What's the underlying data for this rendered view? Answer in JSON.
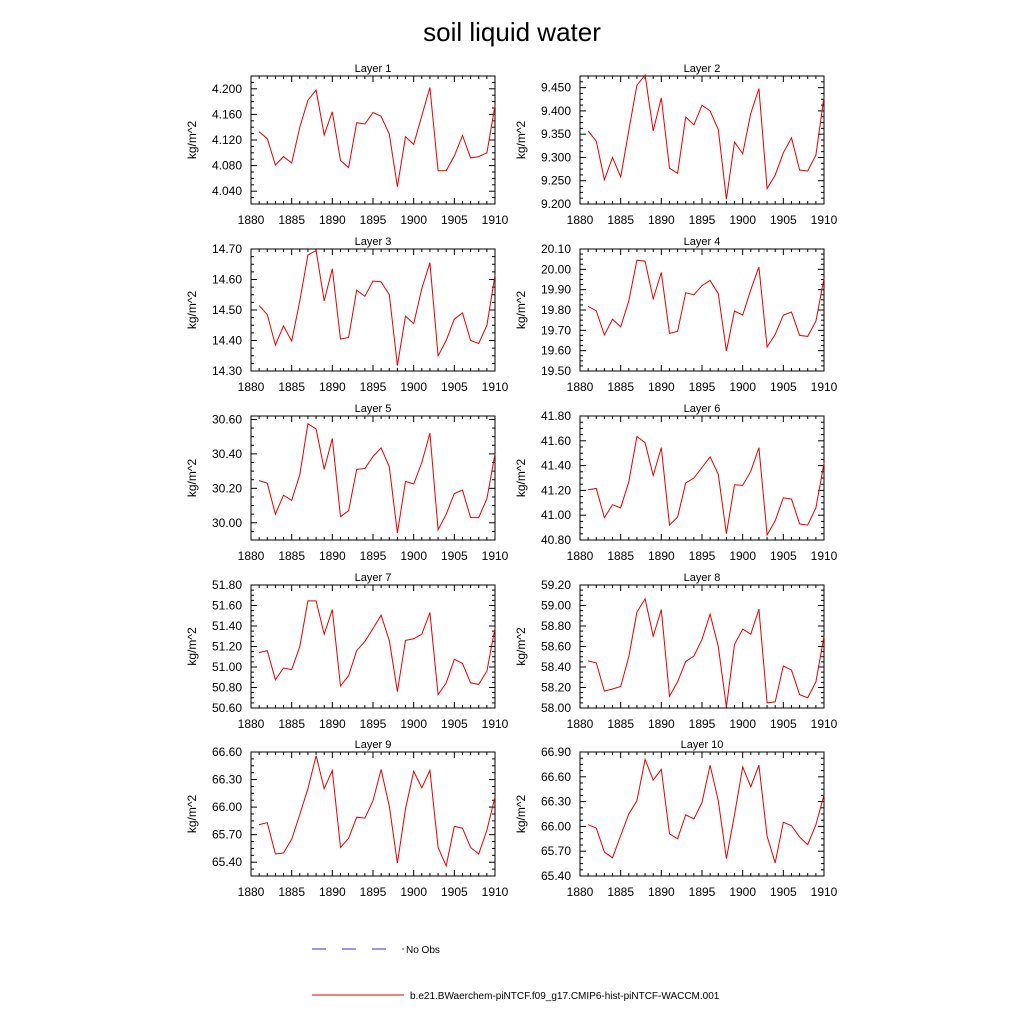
{
  "title": "soil liquid water",
  "legend": {
    "no_obs_label": "No Obs",
    "no_obs_color": "#3333cc",
    "model_label": "b.e21.BWaerchem-piNTCF.f09_g17.CMIP6-hist-piNTCF-WACCM.001",
    "model_color": "#e60000"
  },
  "chart_data": [
    {
      "type": "line",
      "title": "Layer 1",
      "ylabel": "kg/m^2",
      "xlim": [
        1880,
        1910
      ],
      "ylim": [
        4.02,
        4.22
      ],
      "xticks": [
        "1880",
        "1885",
        "1890",
        "1895",
        "1900",
        "1905",
        "1910"
      ],
      "yticks": [
        "4.040",
        "4.080",
        "4.120",
        "4.160",
        "4.200"
      ],
      "x": [
        1881,
        1882,
        1883,
        1884,
        1885,
        1886,
        1887,
        1888,
        1889,
        1890,
        1891,
        1892,
        1893,
        1894,
        1895,
        1896,
        1897,
        1898,
        1899,
        1900,
        1901,
        1902,
        1903,
        1904,
        1905,
        1906,
        1907,
        1908,
        1909,
        1910
      ],
      "series": [
        {
          "values": [
            4.133,
            4.122,
            4.081,
            4.094,
            4.084,
            4.14,
            4.182,
            4.198,
            4.128,
            4.164,
            4.088,
            4.077,
            4.147,
            4.145,
            4.163,
            4.157,
            4.129,
            4.047,
            4.125,
            4.113,
            4.158,
            4.202,
            4.072,
            4.072,
            4.095,
            4.127,
            4.092,
            4.094,
            4.1,
            4.174
          ]
        }
      ]
    },
    {
      "type": "line",
      "title": "Layer 2",
      "ylabel": "kg/m^2",
      "xlim": [
        1880,
        1910
      ],
      "ylim": [
        9.2,
        9.475
      ],
      "xticks": [
        "1880",
        "1885",
        "1890",
        "1895",
        "1900",
        "1905",
        "1910"
      ],
      "yticks": [
        "9.200",
        "9.250",
        "9.300",
        "9.350",
        "9.400",
        "9.450"
      ],
      "x": [
        1881,
        1882,
        1883,
        1884,
        1885,
        1886,
        1887,
        1888,
        1889,
        1890,
        1891,
        1892,
        1893,
        1894,
        1895,
        1896,
        1897,
        1898,
        1899,
        1900,
        1901,
        1902,
        1903,
        1904,
        1905,
        1906,
        1907,
        1908,
        1909,
        1910
      ],
      "series": [
        {
          "values": [
            9.357,
            9.335,
            9.252,
            9.3,
            9.258,
            9.358,
            9.455,
            9.477,
            9.357,
            9.428,
            9.277,
            9.266,
            9.387,
            9.37,
            9.412,
            9.4,
            9.36,
            9.21,
            9.333,
            9.308,
            9.395,
            9.448,
            9.233,
            9.262,
            9.31,
            9.342,
            9.273,
            9.271,
            9.305,
            9.43
          ]
        }
      ]
    },
    {
      "type": "line",
      "title": "Layer 3",
      "ylabel": "kg/m^2",
      "xlim": [
        1880,
        1910
      ],
      "ylim": [
        14.3,
        14.7
      ],
      "xticks": [
        "1880",
        "1885",
        "1890",
        "1895",
        "1900",
        "1905",
        "1910"
      ],
      "yticks": [
        "14.30",
        "14.40",
        "14.50",
        "14.60",
        "14.70"
      ],
      "x": [
        1881,
        1882,
        1883,
        1884,
        1885,
        1886,
        1887,
        1888,
        1889,
        1890,
        1891,
        1892,
        1893,
        1894,
        1895,
        1896,
        1897,
        1898,
        1899,
        1900,
        1901,
        1902,
        1903,
        1904,
        1905,
        1906,
        1907,
        1908,
        1909,
        1910
      ],
      "series": [
        {
          "values": [
            14.515,
            14.485,
            14.385,
            14.448,
            14.398,
            14.53,
            14.68,
            14.695,
            14.53,
            14.635,
            14.405,
            14.41,
            14.565,
            14.545,
            14.595,
            14.592,
            14.55,
            14.318,
            14.48,
            14.455,
            14.57,
            14.655,
            14.35,
            14.4,
            14.47,
            14.49,
            14.4,
            14.39,
            14.45,
            14.615
          ]
        }
      ]
    },
    {
      "type": "line",
      "title": "Layer 4",
      "ylabel": "kg/m^2",
      "xlim": [
        1880,
        1910
      ],
      "ylim": [
        19.5,
        20.1
      ],
      "xticks": [
        "1880",
        "1885",
        "1890",
        "1895",
        "1900",
        "1905",
        "1910"
      ],
      "yticks": [
        "19.50",
        "19.60",
        "19.70",
        "19.80",
        "19.90",
        "20.00",
        "20.10"
      ],
      "x": [
        1881,
        1882,
        1883,
        1884,
        1885,
        1886,
        1887,
        1888,
        1889,
        1890,
        1891,
        1892,
        1893,
        1894,
        1895,
        1896,
        1897,
        1898,
        1899,
        1900,
        1901,
        1902,
        1903,
        1904,
        1905,
        1906,
        1907,
        1908,
        1909,
        1910
      ],
      "series": [
        {
          "values": [
            19.818,
            19.795,
            19.677,
            19.755,
            19.717,
            19.845,
            20.045,
            20.04,
            19.855,
            19.985,
            19.685,
            19.695,
            19.885,
            19.875,
            19.92,
            19.945,
            19.88,
            19.598,
            19.795,
            19.775,
            19.9,
            20.012,
            19.618,
            19.68,
            19.775,
            19.79,
            19.675,
            19.67,
            19.745,
            19.955
          ]
        }
      ]
    },
    {
      "type": "line",
      "title": "Layer 5",
      "ylabel": "kg/m^2",
      "xlim": [
        1880,
        1910
      ],
      "ylim": [
        29.9,
        30.62
      ],
      "xticks": [
        "1880",
        "1885",
        "1890",
        "1895",
        "1900",
        "1905",
        "1910"
      ],
      "yticks": [
        "30.00",
        "30.20",
        "30.40",
        "30.60"
      ],
      "x": [
        1881,
        1882,
        1883,
        1884,
        1885,
        1886,
        1887,
        1888,
        1889,
        1890,
        1891,
        1892,
        1893,
        1894,
        1895,
        1896,
        1897,
        1898,
        1899,
        1900,
        1901,
        1902,
        1903,
        1904,
        1905,
        1906,
        1907,
        1908,
        1909,
        1910
      ],
      "series": [
        {
          "values": [
            30.245,
            30.23,
            30.05,
            30.16,
            30.13,
            30.28,
            30.575,
            30.545,
            30.31,
            30.49,
            30.035,
            30.07,
            30.31,
            30.315,
            30.385,
            30.435,
            30.325,
            29.94,
            30.24,
            30.225,
            30.35,
            30.52,
            29.96,
            30.05,
            30.17,
            30.19,
            30.03,
            30.03,
            30.14,
            30.4
          ]
        }
      ]
    },
    {
      "type": "line",
      "title": "Layer 6",
      "ylabel": "kg/m^2",
      "xlim": [
        1880,
        1910
      ],
      "ylim": [
        40.8,
        41.8
      ],
      "xticks": [
        "1880",
        "1885",
        "1890",
        "1895",
        "1900",
        "1905",
        "1910"
      ],
      "yticks": [
        "40.80",
        "41.00",
        "41.20",
        "41.40",
        "41.60",
        "41.80"
      ],
      "x": [
        1881,
        1882,
        1883,
        1884,
        1885,
        1886,
        1887,
        1888,
        1889,
        1890,
        1891,
        1892,
        1893,
        1894,
        1895,
        1896,
        1897,
        1898,
        1899,
        1900,
        1901,
        1902,
        1903,
        1904,
        1905,
        1906,
        1907,
        1908,
        1909,
        1910
      ],
      "series": [
        {
          "values": [
            41.205,
            41.215,
            40.98,
            41.085,
            41.06,
            41.27,
            41.635,
            41.585,
            41.32,
            41.545,
            40.92,
            40.985,
            41.26,
            41.3,
            41.385,
            41.47,
            41.33,
            40.85,
            41.245,
            41.24,
            41.355,
            41.545,
            40.84,
            40.955,
            41.14,
            41.13,
            40.93,
            40.92,
            41.06,
            41.42
          ]
        }
      ]
    },
    {
      "type": "line",
      "title": "Layer 7",
      "ylabel": "kg/m^2",
      "xlim": [
        1880,
        1910
      ],
      "ylim": [
        50.6,
        51.8
      ],
      "xticks": [
        "1880",
        "1885",
        "1890",
        "1895",
        "1900",
        "1905",
        "1910"
      ],
      "yticks": [
        "50.60",
        "50.80",
        "51.00",
        "51.20",
        "51.40",
        "51.60",
        "51.80"
      ],
      "x": [
        1881,
        1882,
        1883,
        1884,
        1885,
        1886,
        1887,
        1888,
        1889,
        1890,
        1891,
        1892,
        1893,
        1894,
        1895,
        1896,
        1897,
        1898,
        1899,
        1900,
        1901,
        1902,
        1903,
        1904,
        1905,
        1906,
        1907,
        1908,
        1909,
        1910
      ],
      "series": [
        {
          "values": [
            51.14,
            51.16,
            50.875,
            50.99,
            50.975,
            51.2,
            51.645,
            51.645,
            51.32,
            51.56,
            50.815,
            50.915,
            51.16,
            51.25,
            51.375,
            51.505,
            51.26,
            50.76,
            51.26,
            51.275,
            51.32,
            51.53,
            50.73,
            50.845,
            51.075,
            51.035,
            50.845,
            50.83,
            50.96,
            51.38
          ]
        }
      ]
    },
    {
      "type": "line",
      "title": "Layer 8",
      "ylabel": "kg/m^2",
      "xlim": [
        1880,
        1910
      ],
      "ylim": [
        58.0,
        59.2
      ],
      "xticks": [
        "1880",
        "1885",
        "1890",
        "1895",
        "1900",
        "1905",
        "1910"
      ],
      "yticks": [
        "58.00",
        "58.20",
        "58.40",
        "58.60",
        "58.80",
        "59.00",
        "59.20"
      ],
      "x": [
        1881,
        1882,
        1883,
        1884,
        1885,
        1886,
        1887,
        1888,
        1889,
        1890,
        1891,
        1892,
        1893,
        1894,
        1895,
        1896,
        1897,
        1898,
        1899,
        1900,
        1901,
        1902,
        1903,
        1904,
        1905,
        1906,
        1907,
        1908,
        1909,
        1910
      ],
      "series": [
        {
          "values": [
            58.46,
            58.44,
            58.165,
            58.185,
            58.21,
            58.5,
            58.935,
            59.065,
            58.7,
            58.96,
            58.115,
            58.255,
            58.455,
            58.505,
            58.67,
            58.915,
            58.6,
            58.01,
            58.62,
            58.77,
            58.72,
            58.965,
            58.05,
            58.06,
            58.41,
            58.37,
            58.13,
            58.1,
            58.255,
            58.7
          ]
        }
      ]
    },
    {
      "type": "line",
      "title": "Layer 9",
      "ylabel": "kg/m^2",
      "xlim": [
        1880,
        1910
      ],
      "ylim": [
        65.25,
        66.6
      ],
      "xticks": [
        "1880",
        "1885",
        "1890",
        "1895",
        "1900",
        "1905",
        "1910"
      ],
      "yticks": [
        "65.40",
        "65.70",
        "66.00",
        "66.30",
        "66.60"
      ],
      "x": [
        1881,
        1882,
        1883,
        1884,
        1885,
        1886,
        1887,
        1888,
        1889,
        1890,
        1891,
        1892,
        1893,
        1894,
        1895,
        1896,
        1897,
        1898,
        1899,
        1900,
        1901,
        1902,
        1903,
        1904,
        1905,
        1906,
        1907,
        1908,
        1909,
        1910
      ],
      "series": [
        {
          "values": [
            65.81,
            65.83,
            65.49,
            65.5,
            65.65,
            65.92,
            66.2,
            66.56,
            66.2,
            66.4,
            65.56,
            65.66,
            65.89,
            65.88,
            66.07,
            66.41,
            66.01,
            65.39,
            65.98,
            66.39,
            66.21,
            66.4,
            65.56,
            65.36,
            65.79,
            65.77,
            65.56,
            65.49,
            65.75,
            66.11
          ]
        }
      ]
    },
    {
      "type": "line",
      "title": "Layer 10",
      "ylabel": "kg/m^2",
      "xlim": [
        1880,
        1910
      ],
      "ylim": [
        65.4,
        66.9
      ],
      "xticks": [
        "1880",
        "1885",
        "1890",
        "1895",
        "1900",
        "1905",
        "1910"
      ],
      "yticks": [
        "65.40",
        "65.70",
        "66.00",
        "66.30",
        "66.60",
        "66.90"
      ],
      "x": [
        1881,
        1882,
        1883,
        1884,
        1885,
        1886,
        1887,
        1888,
        1889,
        1890,
        1891,
        1892,
        1893,
        1894,
        1895,
        1896,
        1897,
        1898,
        1899,
        1900,
        1901,
        1902,
        1903,
        1904,
        1905,
        1906,
        1907,
        1908,
        1909,
        1910
      ],
      "series": [
        {
          "values": [
            66.02,
            65.98,
            65.69,
            65.62,
            65.89,
            66.15,
            66.31,
            66.81,
            66.56,
            66.69,
            65.91,
            65.85,
            66.14,
            66.09,
            66.29,
            66.74,
            66.31,
            65.61,
            66.14,
            66.72,
            66.48,
            66.74,
            65.88,
            65.56,
            66.05,
            66.01,
            65.87,
            65.78,
            66.02,
            66.38
          ]
        }
      ]
    }
  ]
}
